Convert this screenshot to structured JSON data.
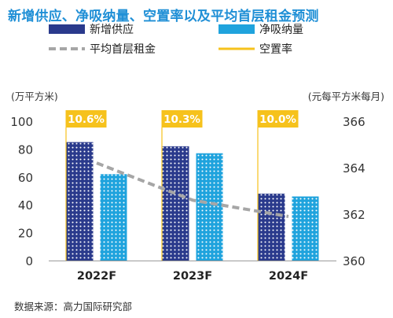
{
  "chart_data": {
    "type": "bar",
    "title": "新增供应、净吸纳量、空置率以及平均首层租金预测",
    "categories": [
      "2022F",
      "2023F",
      "2024F"
    ],
    "series": [
      {
        "name": "新增供应",
        "type": "bar",
        "axis": "left",
        "values": [
          85,
          82,
          48
        ],
        "color": "#2A3A8C"
      },
      {
        "name": "净吸纳量",
        "type": "bar",
        "axis": "left",
        "values": [
          62,
          77,
          46
        ],
        "color": "#1FA3DD"
      },
      {
        "name": "平均首层租金",
        "type": "line",
        "axis": "right",
        "values": [
          364.2,
          362.6,
          361.9
        ],
        "color": "#A6A6A6"
      },
      {
        "name": "空置率",
        "type": "label",
        "values": [
          "10.6%",
          "10.3%",
          "10.0%"
        ],
        "color": "#F6C21C"
      }
    ],
    "left_axis": {
      "unit_label": "(万平方米)",
      "ticks": [
        "0",
        "20",
        "40",
        "60",
        "80",
        "100"
      ],
      "range": [
        0,
        100
      ]
    },
    "right_axis": {
      "unit_label": "(元每平方米每月)",
      "ticks": [
        "360",
        "362",
        "364",
        "366"
      ],
      "range": [
        360,
        366
      ]
    },
    "legend": {
      "placement": "top",
      "entries": [
        "新增供应",
        "净吸纳量",
        "平均首层租金",
        "空置率"
      ]
    },
    "grid": false
  },
  "source_note": "数据来源：高力国际研究部"
}
